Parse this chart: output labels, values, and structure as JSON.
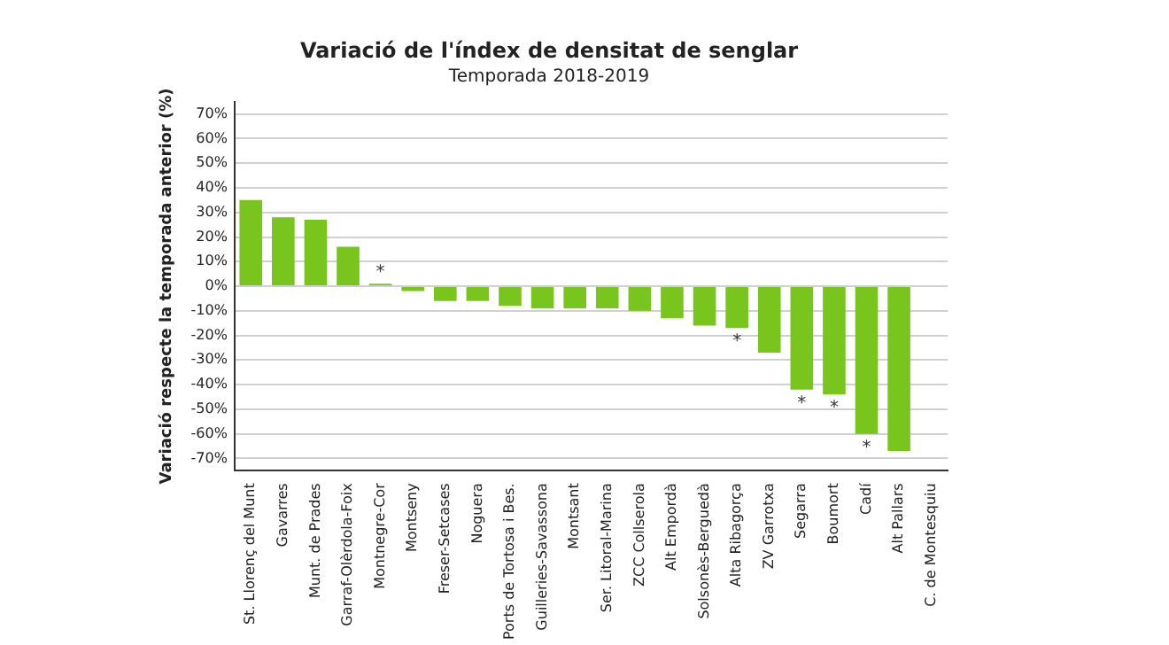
{
  "chart_data": {
    "type": "bar",
    "title": "Variació de l'índex de densitat de senglar",
    "subtitle": "Temporada 2018-2019",
    "ylabel": "Variació respecte la temporada anterior (%)",
    "categories": [
      "St. Llorenç del Munt",
      "Gavarres",
      "Munt. de Prades",
      "Garraf-Olèrdola-Foix",
      "Montnegre-Cor",
      "Montseny",
      "Freser-Setcases",
      "Noguera",
      "Ports de Tortosa i Bes.",
      "Guilleries-Savassona",
      "Montsant",
      "Ser. Litoral-Marina",
      "ZCC Collserola",
      "Alt Empordà",
      "Solsonès-Berguedà",
      "Alta Ribagorça",
      "ZV Garrotxa",
      "Segarra",
      "Boumort",
      "Cadí",
      "Alt Pallars",
      "C. de Montesquiu"
    ],
    "values": [
      35,
      28,
      27,
      16,
      1,
      -2,
      -6,
      -6,
      -8,
      -9,
      -9,
      -9,
      -10,
      -13,
      -16,
      -17,
      -27,
      -42,
      -44,
      -60,
      -67,
      null
    ],
    "color": "#78c51e",
    "ylim": [
      -75,
      75
    ],
    "yticks": [
      {
        "value": 70,
        "label": "70%"
      },
      {
        "value": 60,
        "label": "60%"
      },
      {
        "value": 50,
        "label": "50%"
      },
      {
        "value": 40,
        "label": "40%"
      },
      {
        "value": 30,
        "label": "30%"
      },
      {
        "value": 20,
        "label": "20%"
      },
      {
        "value": 10,
        "label": "10%"
      },
      {
        "value": 0,
        "label": "0%"
      },
      {
        "value": -10,
        "label": "-10%"
      },
      {
        "value": -20,
        "label": "-20%"
      },
      {
        "value": -30,
        "label": "-30%"
      },
      {
        "value": -40,
        "label": "-40%"
      },
      {
        "value": -50,
        "label": "-50%"
      },
      {
        "value": -60,
        "label": "-60%"
      },
      {
        "value": -70,
        "label": "-70%"
      }
    ],
    "grid": "y",
    "annotations": [
      {
        "text": "*",
        "x": "Montnegre-Cor",
        "y": 1
      },
      {
        "text": "*",
        "x": "Alta Ribagorça",
        "y": -17
      },
      {
        "text": "*",
        "x": "Segarra",
        "y": -42
      },
      {
        "text": "*",
        "x": "Boumort",
        "y": -44
      },
      {
        "text": "*",
        "x": "Cadí",
        "y": -60
      }
    ]
  }
}
